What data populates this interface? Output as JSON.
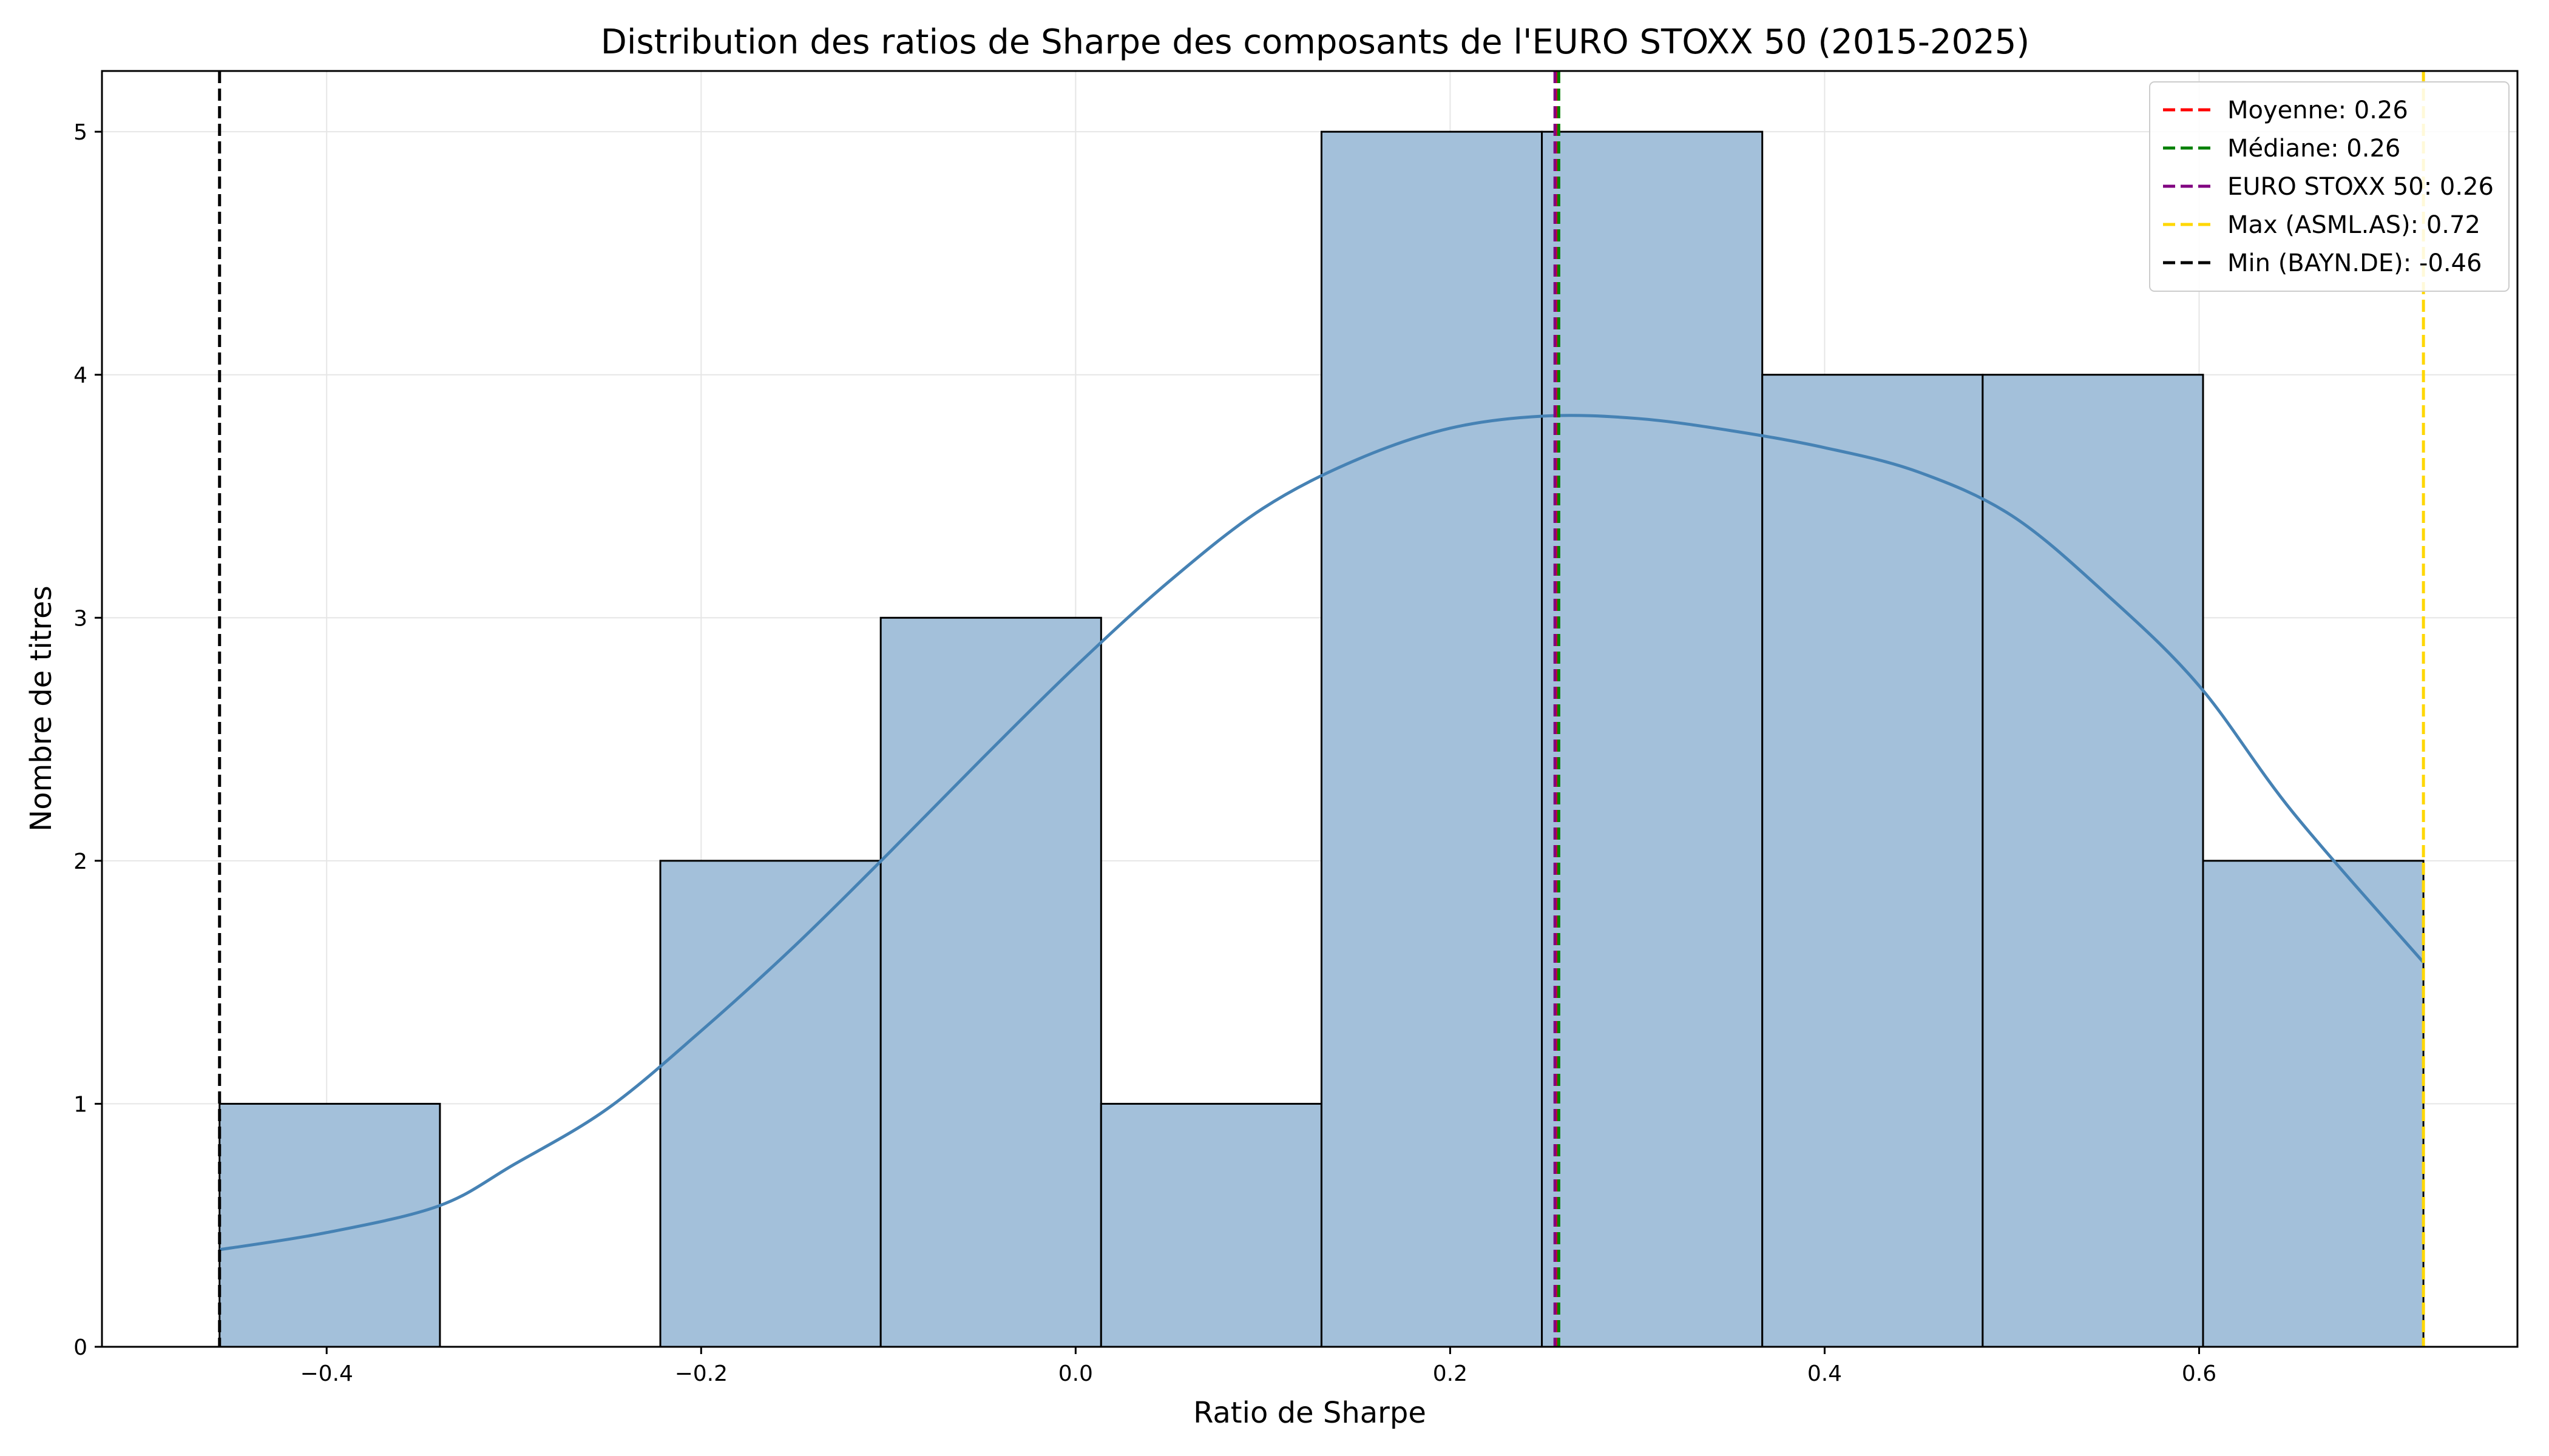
{
  "chart_data": {
    "type": "bar",
    "title": "Distribution des ratios de Sharpe des composants de l'EURO STOXX 50 (2015-2025)",
    "xlabel": "Ratio de Sharpe",
    "ylabel": "Nombre de titres",
    "xlim": [
      -0.52,
      0.77
    ],
    "ylim": [
      0,
      5.25
    ],
    "xticks": [
      -0.4,
      -0.2,
      0.0,
      0.2,
      0.4,
      0.6
    ],
    "xtick_labels": [
      "−0.4",
      "−0.2",
      "0.0",
      "0.2",
      "0.4",
      "0.6"
    ],
    "yticks": [
      0,
      1,
      2,
      3,
      4,
      5
    ],
    "ytick_labels": [
      "0",
      "1",
      "2",
      "3",
      "4",
      "5"
    ],
    "grid": true,
    "bins": [
      {
        "x0": -0.4572,
        "x1": -0.3395,
        "count": 1
      },
      {
        "x0": -0.3395,
        "x1": -0.2218,
        "count": 0
      },
      {
        "x0": -0.2218,
        "x1": -0.1041,
        "count": 2
      },
      {
        "x0": -0.1041,
        "x1": 0.0136,
        "count": 3
      },
      {
        "x0": 0.0136,
        "x1": 0.1313,
        "count": 1
      },
      {
        "x0": 0.1313,
        "x1": 0.249,
        "count": 5
      },
      {
        "x0": 0.249,
        "x1": 0.3667,
        "count": 5
      },
      {
        "x0": 0.3667,
        "x1": 0.4844,
        "count": 4
      },
      {
        "x0": 0.4844,
        "x1": 0.6021,
        "count": 4
      },
      {
        "x0": 0.6021,
        "x1": 0.7198,
        "count": 2
      }
    ],
    "kde": {
      "x": [
        -0.457,
        -0.4,
        -0.34,
        -0.3,
        -0.25,
        -0.2,
        -0.15,
        -0.1,
        -0.05,
        0.0,
        0.05,
        0.1,
        0.15,
        0.2,
        0.25,
        0.3,
        0.35,
        0.4,
        0.45,
        0.5,
        0.55,
        0.6,
        0.65,
        0.72
      ],
      "y": [
        0.4,
        0.47,
        0.58,
        0.75,
        0.98,
        1.3,
        1.65,
        2.03,
        2.42,
        2.8,
        3.15,
        3.45,
        3.65,
        3.78,
        3.83,
        3.82,
        3.77,
        3.7,
        3.6,
        3.42,
        3.1,
        2.72,
        2.2,
        1.58
      ]
    },
    "reference_lines": [
      {
        "label": "Moyenne: 0.26",
        "x": 0.257,
        "color": "#ff0000"
      },
      {
        "label": "Médiane: 0.26",
        "x": 0.258,
        "color": "#008000"
      },
      {
        "label": "EURO STOXX 50: 0.26",
        "x": 0.256,
        "color": "#800080"
      },
      {
        "label": "Max (ASML.AS): 0.72",
        "x": 0.7198,
        "color": "#ffd700"
      },
      {
        "label": "Min (BAYN.DE): -0.46",
        "x": -0.4572,
        "color": "#000000"
      }
    ],
    "legend_position": "top-right",
    "bar_color": "#a3c0da",
    "kde_color": "#4682b4"
  }
}
